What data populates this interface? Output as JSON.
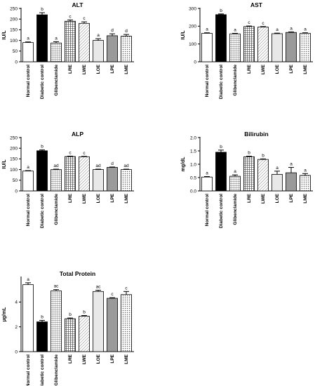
{
  "categories": [
    "Normal control",
    "Diabetic control",
    "Glibenclamide",
    "LRE",
    "LWE",
    "LOE",
    "LPE",
    "LME"
  ],
  "bar_styles": [
    "white",
    "black",
    "grid",
    "check",
    "hatch",
    "light",
    "gray",
    "dots"
  ],
  "chart_data": [
    {
      "type": "bar",
      "title": "ALT",
      "ylabel": "IU/L",
      "ylim": [
        0,
        250
      ],
      "yticks": [
        0,
        50,
        100,
        150,
        200,
        250
      ],
      "values": [
        90,
        220,
        88,
        190,
        180,
        100,
        122,
        120
      ],
      "errors": [
        3,
        10,
        6,
        6,
        7,
        8,
        9,
        8
      ],
      "significance": [
        "a",
        "b",
        "a",
        "c",
        "c",
        "a",
        "d",
        "d"
      ]
    },
    {
      "type": "bar",
      "title": "AST",
      "ylabel": "IU/L",
      "ylim": [
        0,
        300
      ],
      "yticks": [
        0,
        100,
        200,
        300
      ],
      "values": [
        160,
        265,
        157,
        198,
        195,
        158,
        165,
        160
      ],
      "errors": [
        3,
        4,
        3,
        3,
        3,
        3,
        3,
        3
      ],
      "significance": [
        "a",
        "b",
        "a",
        "c",
        "c",
        "a",
        "a",
        "a"
      ]
    },
    {
      "type": "bar",
      "title": "ALP",
      "ylabel": "IU/L",
      "ylim": [
        0,
        250
      ],
      "yticks": [
        0,
        50,
        100,
        150,
        200,
        250
      ],
      "values": [
        93,
        188,
        100,
        161,
        160,
        100,
        110,
        100
      ],
      "errors": [
        2,
        4,
        2,
        2,
        2,
        2,
        2,
        2
      ],
      "significance": [
        "a",
        "b",
        "ad",
        "c",
        "c",
        "ad",
        "d",
        "ad"
      ]
    },
    {
      "type": "bar",
      "title": "Bilirubin",
      "ylabel": "mg/dL",
      "ylim": [
        0,
        2.0
      ],
      "yticks": [
        "0.0",
        "0.5",
        "1.0",
        "1.5",
        "2.0"
      ],
      "values": [
        0.52,
        1.45,
        0.55,
        1.28,
        1.18,
        0.62,
        0.68,
        0.58
      ],
      "errors": [
        0.02,
        0.08,
        0.05,
        0.02,
        0.02,
        0.12,
        0.2,
        0.07
      ],
      "significance": [
        "a",
        "b",
        "a",
        "b",
        "b",
        "a",
        "a",
        "a"
      ]
    },
    {
      "type": "bar",
      "title": "Total Protein",
      "ylabel": "µg/mL",
      "ylim": [
        0,
        6
      ],
      "yticks": [
        0,
        2,
        4
      ],
      "values": [
        5.4,
        2.4,
        4.9,
        2.65,
        2.85,
        4.85,
        4.3,
        4.6
      ],
      "errors": [
        0.15,
        0.12,
        0.1,
        0.06,
        0.06,
        0.1,
        0.05,
        0.25
      ],
      "significance": [
        "a",
        "b",
        "ac",
        "b",
        "b",
        "ac",
        "c",
        "c"
      ]
    }
  ]
}
